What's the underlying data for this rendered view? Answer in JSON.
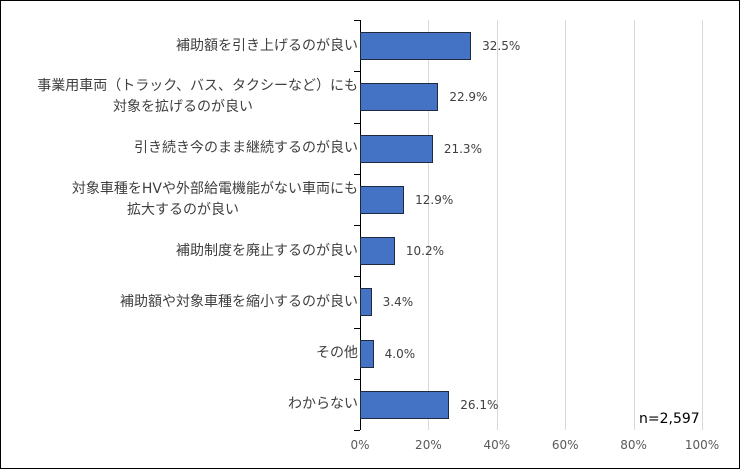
{
  "chart_data": {
    "type": "bar",
    "orientation": "horizontal",
    "categories": [
      "補助額を引き上げるのが良い",
      "事業用車両(トラック、バス、タクシーなど)にも対象を拡げるのが良い",
      "引き続き今のまま継続するのが良い",
      "対象車種をHVや外部給電機能がない車両にも拡大するのが良い",
      "補助制度を廃止するのが良い",
      "補助額や対象車種を縮小するのが良い",
      "その他",
      "わからない"
    ],
    "category_lines": [
      [
        "補助額を引き上げるのが良い"
      ],
      [
        "事業用車両（トラック、バス、タクシーなど）にも",
        "対象を拡げるのが良い"
      ],
      [
        "引き続き今のまま継続するのが良い"
      ],
      [
        "対象車種をHVや外部給電機能がない車両にも",
        "拡大するのが良い"
      ],
      [
        "補助制度を廃止するのが良い"
      ],
      [
        "補助額や対象車種を縮小するのが良い"
      ],
      [
        "その他"
      ],
      [
        "わからない"
      ]
    ],
    "values": [
      32.5,
      22.9,
      21.3,
      12.9,
      10.2,
      3.4,
      4.0,
      26.1
    ],
    "value_labels": [
      "32.5%",
      "22.9%",
      "21.3%",
      "12.9%",
      "10.2%",
      "3.4%",
      "4.0%",
      "26.1%"
    ],
    "xlim": [
      0,
      100
    ],
    "x_ticks": [
      "0%",
      "20%",
      "40%",
      "60%",
      "80%",
      "100%"
    ],
    "grid": true,
    "bar_color": "#4472c4",
    "annotation": "n=2,597",
    "title": "",
    "xlabel": "",
    "ylabel": ""
  }
}
